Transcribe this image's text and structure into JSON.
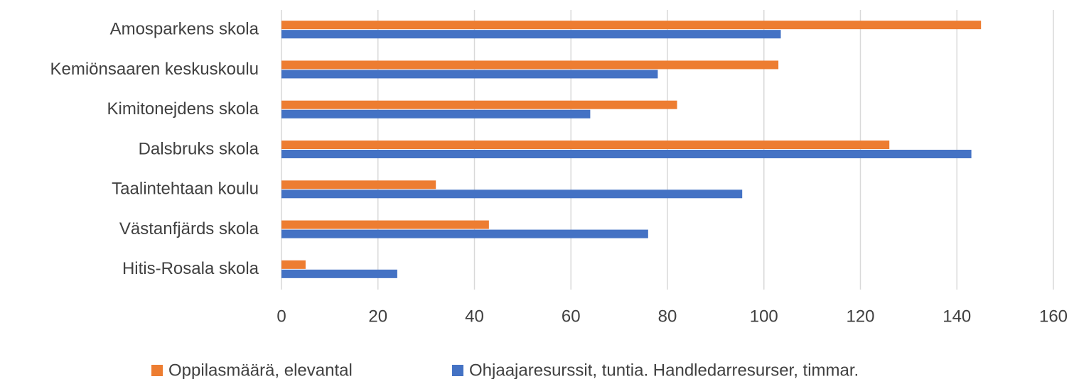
{
  "chart_data": {
    "type": "hbar",
    "categories": [
      "Amosparkens skola",
      "Kemiönsaaren keskuskoulu",
      "Kimitonejdens skola",
      "Dalsbruks skola",
      "Taalintehtaan koulu",
      "Västanfjärds skola",
      "Hitis-Rosala skola"
    ],
    "series": [
      {
        "name": "Oppilasmäärä, elevantal",
        "color": "#ed7d31",
        "values": [
          145,
          103,
          82,
          126,
          32,
          43,
          5
        ]
      },
      {
        "name": "Ohjaajaresurssit, tuntia. Handledarresurser, timmar.",
        "color": "#4472c4",
        "values": [
          103.5,
          78,
          64,
          143,
          95.5,
          76,
          24
        ]
      }
    ],
    "xlim": [
      0,
      160
    ],
    "xticks": [
      0,
      20,
      40,
      60,
      80,
      100,
      120,
      140,
      160
    ],
    "grid": true,
    "legend": "bottom"
  }
}
